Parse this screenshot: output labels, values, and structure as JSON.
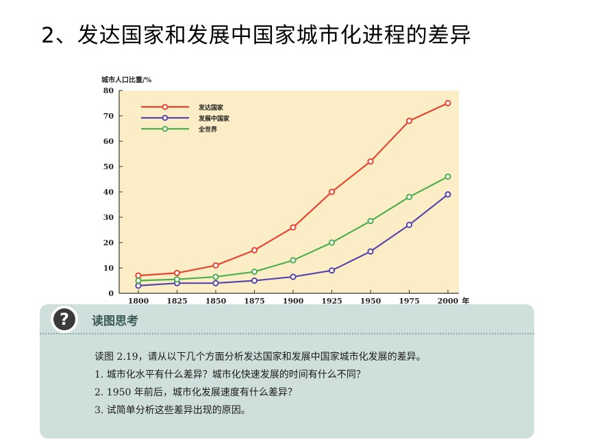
{
  "slide_title": "2、发达国家和发展中国家城市化进程的差异",
  "chart_data": {
    "type": "line",
    "ylabel": "城市人口比重/%",
    "x_unit": "年",
    "x": [
      1800,
      1825,
      1850,
      1875,
      1900,
      1925,
      1950,
      1975,
      2000
    ],
    "ylim": [
      0,
      80
    ],
    "yticks": [
      0,
      10,
      20,
      30,
      40,
      50,
      60,
      70,
      80
    ],
    "grid": false,
    "legend_position": "top-left",
    "background_color": "#fbeec6",
    "series": [
      {
        "name": "发达国家",
        "color": "#e8432f",
        "values": [
          7,
          8,
          11,
          17,
          26,
          40,
          52,
          68,
          75
        ]
      },
      {
        "name": "发展中国家",
        "color": "#5544aa",
        "values": [
          3,
          4,
          4,
          5,
          6.5,
          9,
          16.5,
          27,
          39
        ]
      },
      {
        "name": "全世界",
        "color": "#4cae4c",
        "values": [
          5,
          5.5,
          6.5,
          8.5,
          13,
          20,
          28.5,
          38,
          46
        ]
      }
    ]
  },
  "panel": {
    "heading": "读图思考",
    "lines": [
      "读图 2.19，请从以下几个方面分析发达国家和发展中国家城市化发展的差异。",
      "1. 城市化水平有什么差异？城市化快速发展的时间有什么不同？",
      "2. 1950 年前后，城市化发展速度有什么差异？",
      "3. 试简单分析这些差异出现的原因。"
    ]
  }
}
